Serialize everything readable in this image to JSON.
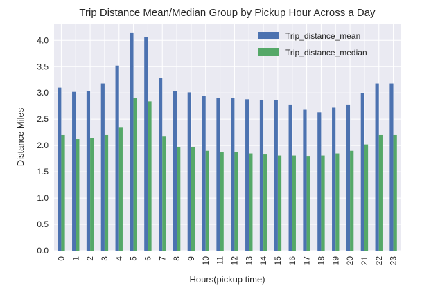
{
  "chart_data": {
    "type": "bar",
    "title": "Trip Distance Mean/Median Group by Pickup Hour Across a Day",
    "xlabel": "Hours(pickup time)",
    "ylabel": "Distance Miles",
    "categories": [
      "0",
      "1",
      "2",
      "3",
      "4",
      "5",
      "6",
      "7",
      "8",
      "9",
      "10",
      "11",
      "12",
      "13",
      "14",
      "15",
      "16",
      "17",
      "18",
      "19",
      "20",
      "21",
      "22",
      "23"
    ],
    "series": [
      {
        "name": "Trip_distance_mean",
        "color": "#4C72B0",
        "values": [
          3.1,
          3.02,
          3.04,
          3.18,
          3.52,
          4.15,
          4.06,
          3.29,
          3.04,
          3.01,
          2.94,
          2.9,
          2.9,
          2.88,
          2.86,
          2.86,
          2.78,
          2.68,
          2.63,
          2.72,
          2.78,
          3.0,
          3.18,
          3.18
        ]
      },
      {
        "name": "Trip_distance_median",
        "color": "#55A868",
        "values": [
          2.2,
          2.12,
          2.14,
          2.2,
          2.34,
          2.9,
          2.84,
          2.17,
          1.97,
          1.97,
          1.9,
          1.87,
          1.88,
          1.85,
          1.83,
          1.81,
          1.81,
          1.79,
          1.81,
          1.85,
          1.9,
          2.02,
          2.2,
          2.2
        ]
      }
    ],
    "ylim": [
      0,
      4.32
    ],
    "yticks": [
      "0.0",
      "0.5",
      "1.0",
      "1.5",
      "2.0",
      "2.5",
      "3.0",
      "3.5",
      "4.0"
    ],
    "grid": true,
    "background": "#EAEAF2",
    "legend_position": "top-right"
  }
}
